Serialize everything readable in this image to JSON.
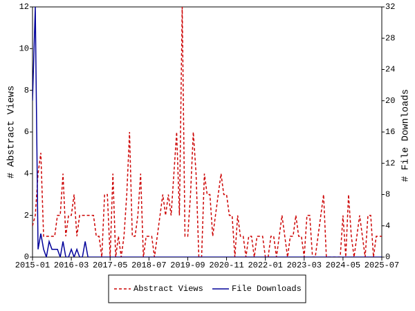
{
  "chart_data": {
    "type": "line",
    "y_label": "# Abstract Views",
    "y2_label": "# File Downloads",
    "categories": [
      "2015-01",
      null,
      null,
      null,
      null,
      null,
      null,
      null,
      null,
      null,
      null,
      null,
      null,
      null,
      "2016-03",
      null,
      null,
      null,
      null,
      null,
      null,
      null,
      null,
      null,
      null,
      null,
      null,
      null,
      "2017-05",
      null,
      null,
      null,
      null,
      null,
      null,
      null,
      null,
      null,
      null,
      null,
      null,
      null,
      "2018-07",
      null,
      null,
      null,
      null,
      null,
      null,
      null,
      null,
      null,
      null,
      null,
      null,
      null,
      "2019-09",
      null,
      null,
      null,
      null,
      null,
      null,
      null,
      null,
      null,
      null,
      null,
      null,
      null,
      "2020-11",
      null,
      null,
      null,
      null,
      null,
      null,
      null,
      null,
      null,
      null,
      null,
      null,
      null,
      "2022-01",
      null,
      null,
      null,
      null,
      null,
      null,
      null,
      null,
      null,
      null,
      null,
      null,
      null,
      "2023-03",
      null,
      null,
      null,
      null,
      null,
      null,
      null,
      null,
      null,
      null,
      null,
      null,
      null,
      "2024-05",
      null,
      null,
      null,
      null,
      null,
      null,
      null,
      null,
      null,
      null,
      null,
      null,
      null,
      "2025-07"
    ],
    "series": [
      {
        "name": "Abstract Views",
        "color": "#cc0000",
        "dashed": true,
        "values": [
          1.5,
          2,
          4,
          5,
          1,
          1,
          1,
          1,
          1,
          2,
          2,
          4,
          1,
          2,
          2,
          3,
          1,
          2,
          2,
          2,
          2,
          2,
          2,
          1,
          1,
          0,
          3,
          3,
          0,
          4,
          0,
          1,
          0,
          1,
          3,
          6,
          1,
          1,
          2,
          4,
          0,
          1,
          1,
          1,
          0,
          1,
          2,
          3,
          2,
          3,
          2,
          4,
          6,
          2,
          12,
          1,
          1,
          3,
          6,
          4,
          0,
          0,
          4,
          3,
          3,
          1,
          2,
          3,
          4,
          3,
          3,
          2,
          2,
          0,
          2,
          1,
          1,
          0,
          1,
          1,
          0,
          1,
          1,
          1,
          0,
          0,
          1,
          1,
          0,
          1,
          2,
          1,
          0,
          1,
          1,
          2,
          1,
          1,
          0,
          2,
          2,
          0,
          0,
          1,
          2,
          3,
          0,
          0,
          0,
          0,
          0,
          0,
          2,
          0,
          3,
          1,
          0,
          1,
          2,
          1,
          0,
          2,
          2,
          0,
          1,
          1,
          1
        ]
      },
      {
        "name": "File Downloads",
        "color": "#000099",
        "axis": "y2",
        "values": [
          20,
          32,
          1,
          3,
          1,
          0,
          2,
          1,
          1,
          1,
          0,
          2,
          0,
          0,
          1,
          0,
          1,
          0,
          0,
          2,
          0,
          0,
          0,
          0,
          0,
          0,
          0,
          0,
          0,
          0,
          0,
          0,
          0,
          0,
          0,
          0,
          0,
          0,
          0,
          0,
          0,
          0,
          0,
          0,
          0,
          0,
          0,
          0,
          0,
          0,
          0,
          0,
          0,
          0,
          0,
          0,
          0,
          0,
          0,
          0,
          0,
          0,
          0,
          0,
          0,
          0,
          0,
          0,
          0,
          0,
          0,
          0,
          0,
          0,
          0,
          0,
          0,
          0,
          0,
          0,
          0,
          0,
          0,
          0,
          0,
          0,
          0,
          0,
          0,
          0,
          0,
          0,
          0,
          0,
          0,
          0,
          0,
          0,
          0,
          0,
          0,
          0,
          0,
          0,
          0,
          0,
          0,
          0,
          0,
          0,
          0,
          0,
          0,
          0,
          0,
          0,
          0,
          0,
          0,
          0,
          0,
          0,
          0,
          0,
          0,
          0,
          0
        ]
      }
    ],
    "ylim": [
      0,
      12
    ],
    "yticks": [
      0,
      2,
      4,
      6,
      8,
      10,
      12
    ],
    "y2lim": [
      0,
      32
    ],
    "y2ticks": [
      0,
      4,
      8,
      12,
      16,
      20,
      24,
      28,
      32
    ],
    "legend": "bottom"
  }
}
